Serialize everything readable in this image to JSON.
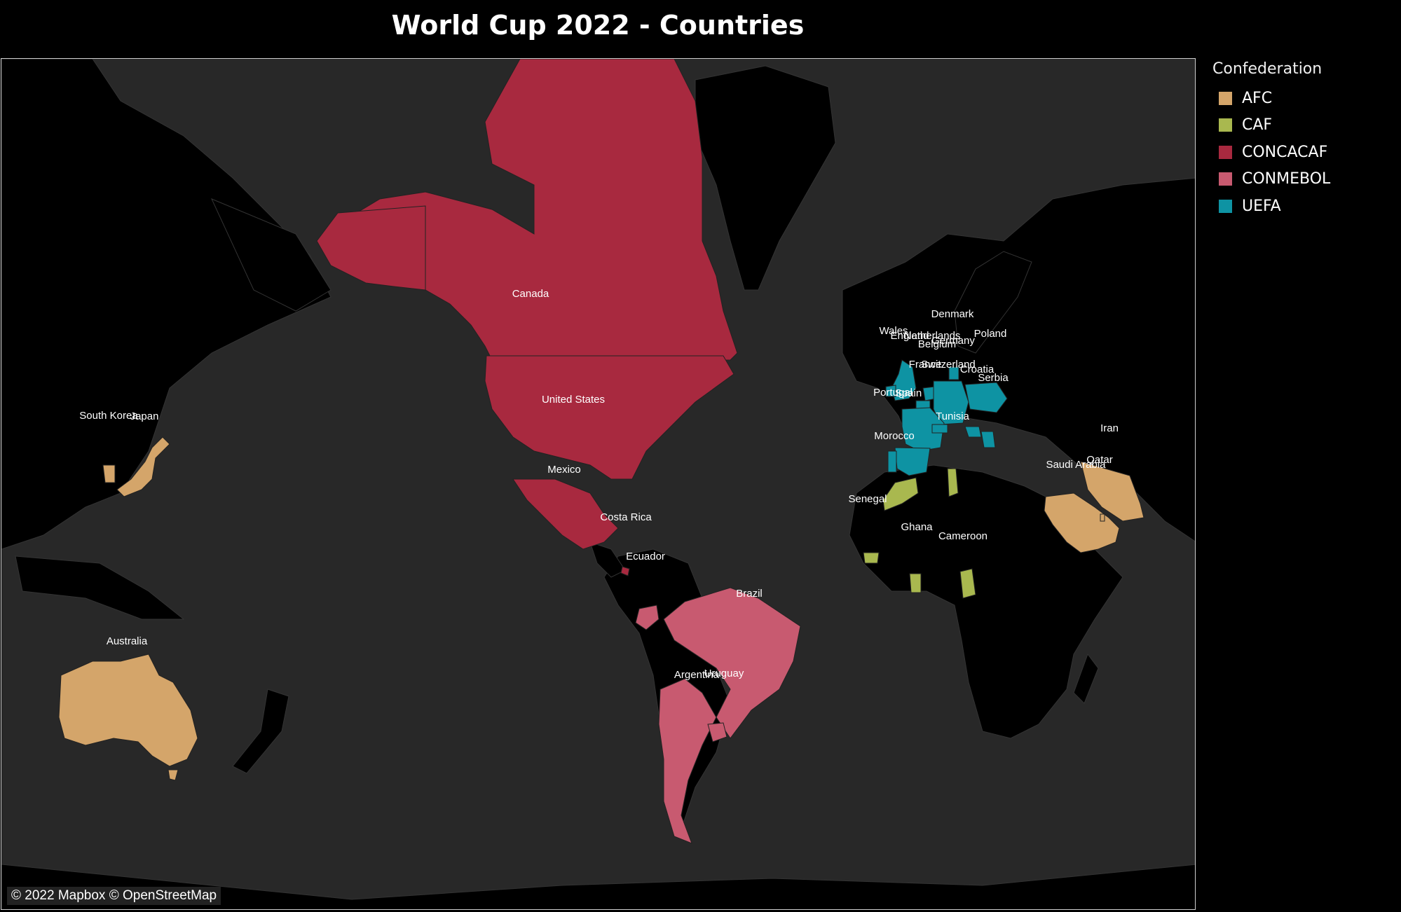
{
  "title": "World Cup 2022 - Countries",
  "attribution": "© 2022 Mapbox © OpenStreetMap",
  "legend": {
    "title": "Confederation",
    "items": [
      {
        "label": "AFC",
        "color": "#d4a56a"
      },
      {
        "label": "CAF",
        "color": "#a9b84f"
      },
      {
        "label": "CONCACAF",
        "color": "#a8293f"
      },
      {
        "label": "CONMEBOL",
        "color": "#c85a70"
      },
      {
        "label": "UEFA",
        "color": "#0e93a3"
      }
    ]
  },
  "colors": {
    "ocean": "#282828",
    "land_other": "#000000",
    "AFC": "#d4a56a",
    "CAF": "#a9b84f",
    "CONCACAF": "#a8293f",
    "CONMEBOL": "#c85a70",
    "UEFA": "#0e93a3"
  },
  "countries": [
    {
      "name": "Canada",
      "confederation": "CONCACAF"
    },
    {
      "name": "United States",
      "confederation": "CONCACAF"
    },
    {
      "name": "Mexico",
      "confederation": "CONCACAF"
    },
    {
      "name": "Costa Rica",
      "confederation": "CONCACAF"
    },
    {
      "name": "Ecuador",
      "confederation": "CONMEBOL"
    },
    {
      "name": "Brazil",
      "confederation": "CONMEBOL"
    },
    {
      "name": "Argentina",
      "confederation": "CONMEBOL"
    },
    {
      "name": "Uruguay",
      "confederation": "CONMEBOL"
    },
    {
      "name": "South Korea",
      "confederation": "AFC"
    },
    {
      "name": "Japan",
      "confederation": "AFC"
    },
    {
      "name": "Australia",
      "confederation": "AFC"
    },
    {
      "name": "Iran",
      "confederation": "AFC"
    },
    {
      "name": "Saudi Arabia",
      "confederation": "AFC"
    },
    {
      "name": "Qatar",
      "confederation": "AFC"
    },
    {
      "name": "Denmark",
      "confederation": "UEFA"
    },
    {
      "name": "Wales",
      "confederation": "UEFA"
    },
    {
      "name": "England",
      "confederation": "UEFA"
    },
    {
      "name": "Netherlands",
      "confederation": "UEFA"
    },
    {
      "name": "Germany",
      "confederation": "UEFA"
    },
    {
      "name": "Poland",
      "confederation": "UEFA"
    },
    {
      "name": "Belgium",
      "confederation": "UEFA"
    },
    {
      "name": "France",
      "confederation": "UEFA"
    },
    {
      "name": "Switzerland",
      "confederation": "UEFA"
    },
    {
      "name": "Croatia",
      "confederation": "UEFA"
    },
    {
      "name": "Serbia",
      "confederation": "UEFA"
    },
    {
      "name": "Portugal",
      "confederation": "UEFA"
    },
    {
      "name": "Spain",
      "confederation": "UEFA"
    },
    {
      "name": "Tunisia",
      "confederation": "CAF"
    },
    {
      "name": "Morocco",
      "confederation": "CAF"
    },
    {
      "name": "Senegal",
      "confederation": "CAF"
    },
    {
      "name": "Ghana",
      "confederation": "CAF"
    },
    {
      "name": "Cameroon",
      "confederation": "CAF"
    }
  ]
}
